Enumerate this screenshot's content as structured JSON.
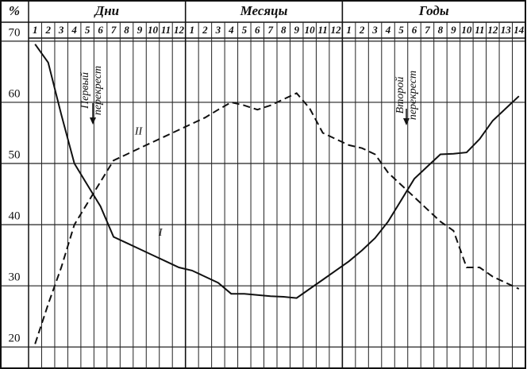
{
  "chart_data": {
    "type": "line",
    "y_unit": "%",
    "groups": [
      {
        "name": "Дни",
        "categories": [
          "1",
          "2",
          "3",
          "4",
          "5",
          "6",
          "7",
          "8",
          "9",
          "10",
          "11",
          "12"
        ]
      },
      {
        "name": "Месяцы",
        "categories": [
          "1",
          "2",
          "3",
          "4",
          "5",
          "6",
          "7",
          "8",
          "9",
          "10",
          "11",
          "12"
        ]
      },
      {
        "name": "Годы",
        "categories": [
          "1",
          "2",
          "3",
          "4",
          "5",
          "6",
          "7",
          "8",
          "9",
          "10",
          "11",
          "12",
          "13",
          "14"
        ]
      }
    ],
    "series": [
      {
        "name": "I",
        "color": "#111111",
        "dashed": false,
        "values": [
          [
            69.5,
            66.5,
            58,
            50,
            46.5,
            43,
            38,
            37,
            36,
            35,
            34,
            33
          ],
          [
            32.5,
            31.5,
            30.5,
            28.7,
            28.7,
            28.5,
            28.3,
            28.2,
            28,
            29.5,
            31,
            32.5
          ],
          [
            34,
            35.8,
            37.8,
            40.5,
            44,
            47.5,
            49.5,
            51.5,
            51.6,
            51.8,
            54,
            57,
            59,
            61
          ]
        ]
      },
      {
        "name": "II",
        "color": "#111111",
        "dashed": true,
        "values": [
          [
            20.5,
            27,
            33,
            40,
            43.5,
            47,
            50.5,
            51.5,
            52.5,
            53.5,
            54.5,
            55.5
          ],
          [
            56.5,
            57.5,
            58.8,
            60,
            59.5,
            58.8,
            59.5,
            60.5,
            61.5,
            59,
            55,
            54
          ],
          [
            53,
            52.5,
            51.5,
            48.5,
            46.5,
            44.5,
            42.5,
            40.5,
            39,
            33,
            33,
            31.5,
            30.5,
            29.5
          ]
        ]
      }
    ],
    "annotations": [
      {
        "lines": [
          "Первый",
          "перекрест"
        ]
      },
      {
        "lines": [
          "Второй",
          "перекрест"
        ]
      }
    ],
    "ylim": [
      16.4,
      70.5
    ],
    "yticks": [
      20,
      30,
      40,
      50,
      60,
      70
    ],
    "grid": true
  }
}
